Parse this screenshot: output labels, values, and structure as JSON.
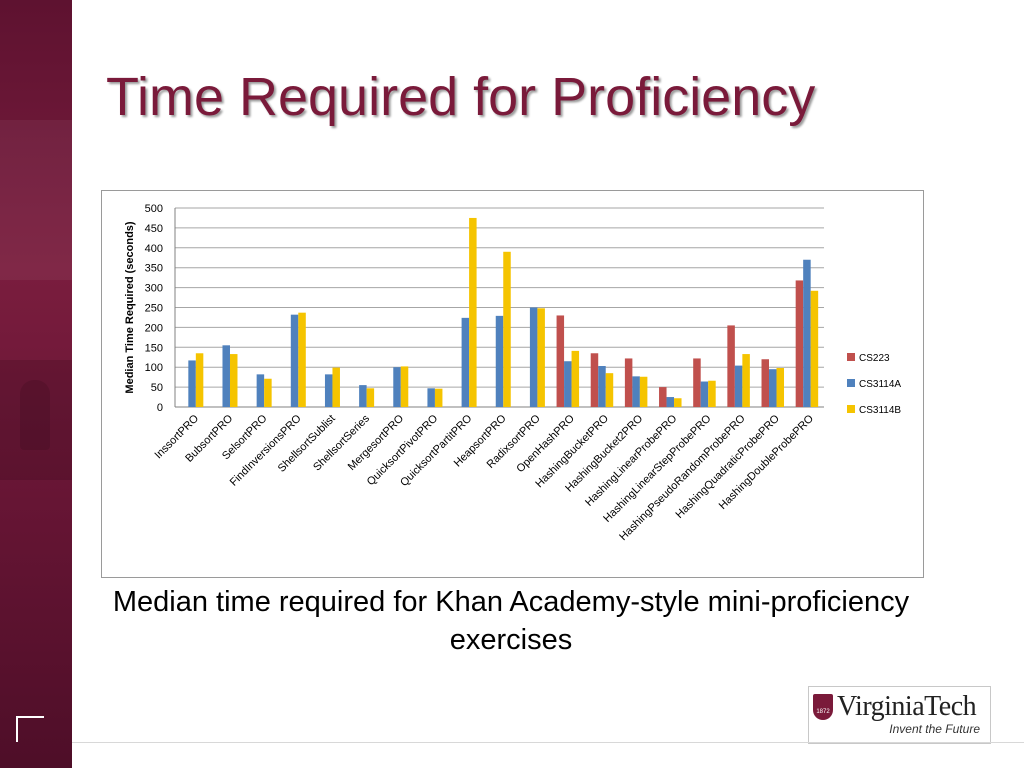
{
  "slide": {
    "title": "Time Required for Proficiency",
    "caption": "Median time required for Khan Academy-style mini-proficiency exercises",
    "logo": {
      "wordmark": "VirginiaTech",
      "tagline": "Invent the Future",
      "shield_year": "1872"
    }
  },
  "colors": {
    "title": "#7a1a3a",
    "sidebar": "#6a1636"
  },
  "chart_data": {
    "type": "bar",
    "ylabel": "Median Time Required (seconds)",
    "ylim": [
      0,
      500
    ],
    "yticks": [
      0,
      50,
      100,
      150,
      200,
      250,
      300,
      350,
      400,
      450,
      500
    ],
    "grid": true,
    "legend": "right",
    "categories": [
      "InssortPRO",
      "BubsortPRO",
      "SelsortPRO",
      "FindInversionsPRO",
      "ShellsortSublist",
      "ShellsortSeries",
      "MergesortPRO",
      "QuicksortPivotPRO",
      "QuicksortPartitPRO",
      "HeapsortPRO",
      "RadixsortPRO",
      "OpenHashPRO",
      "HashingBucketPRO",
      "HashingBucket2PRO",
      "HashingLinearProbePRO",
      "HashingLinearStepProbePRO",
      "HashingPseudoRandomProbePRO",
      "HashingQuadraticProbePRO",
      "HashingDoubleProbePRO"
    ],
    "series": [
      {
        "name": "CS223",
        "color": "#c0504d",
        "values": [
          null,
          null,
          null,
          null,
          null,
          null,
          null,
          null,
          null,
          null,
          null,
          230,
          135,
          122,
          50,
          122,
          205,
          120,
          318
        ]
      },
      {
        "name": "CS3114A",
        "color": "#4f81bd",
        "values": [
          117,
          155,
          82,
          232,
          82,
          55,
          100,
          47,
          224,
          229,
          250,
          115,
          103,
          77,
          25,
          64,
          104,
          95,
          370
        ]
      },
      {
        "name": "CS3114B",
        "color": "#f5c400",
        "values": [
          135,
          133,
          71,
          237,
          99,
          47,
          102,
          46,
          475,
          390,
          248,
          141,
          85,
          76,
          22,
          66,
          133,
          98,
          292
        ]
      }
    ]
  }
}
